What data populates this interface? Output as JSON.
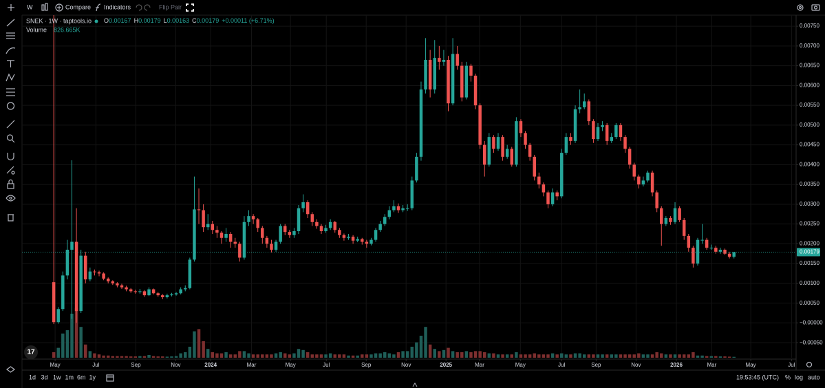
{
  "chart_data": {
    "type": "candlestick",
    "symbol": "SNEK · 1W · taptools.io",
    "ohlc_labels": [
      "O",
      "H",
      "L",
      "C"
    ],
    "change": "+0.00011 (+6.71%)",
    "up_color": "#26a69a",
    "down_color": "#ef5350",
    "volume_up_color": "#1f5e58",
    "volume_down_color": "#7d2f2f",
    "grid": true,
    "xlim": [
      -7,
      163.7
    ],
    "ylim": [
      -0.00088,
      0.00778
    ],
    "yticks": [
      {
        "value": 0.0075,
        "label": "0.00750"
      },
      {
        "value": 0.007,
        "label": "0.00700"
      },
      {
        "value": 0.0065,
        "label": "0.00650"
      },
      {
        "value": 0.006,
        "label": "0.00600"
      },
      {
        "value": 0.0055,
        "label": "0.00550"
      },
      {
        "value": 0.005,
        "label": "0.00500"
      },
      {
        "value": 0.0045,
        "label": "0.00450"
      },
      {
        "value": 0.004,
        "label": "0.00400"
      },
      {
        "value": 0.0035,
        "label": "0.00350"
      },
      {
        "value": 0.003,
        "label": "0.00300"
      },
      {
        "value": 0.0025,
        "label": "0.00250"
      },
      {
        "value": 0.002,
        "label": "0.00200"
      },
      {
        "value": 0.0015,
        "label": "0.00150"
      },
      {
        "value": 0.001,
        "label": "0.00100"
      },
      {
        "value": 0.0005,
        "label": "0.00050"
      },
      {
        "value": 0,
        "label": "−0.00000"
      },
      {
        "value": -0.0005,
        "label": "−0.00050"
      }
    ],
    "xticks": [
      {
        "value": 0.3,
        "label": "May"
      },
      {
        "value": 9.3,
        "label": "Jul"
      },
      {
        "value": 18.1,
        "label": "Sep"
      },
      {
        "value": 26.9,
        "label": "Nov"
      },
      {
        "value": 34.6,
        "label": "2024"
      },
      {
        "value": 43.6,
        "label": "Mar"
      },
      {
        "value": 52.2,
        "label": "May"
      },
      {
        "value": 60.1,
        "label": "Jul"
      },
      {
        "value": 68.9,
        "label": "Sep"
      },
      {
        "value": 77.7,
        "label": "Nov"
      },
      {
        "value": 86.5,
        "label": "2025"
      },
      {
        "value": 93.9,
        "label": "Mar"
      },
      {
        "value": 102.9,
        "label": "May"
      },
      {
        "value": 112,
        "label": "Jul"
      },
      {
        "value": 119.6,
        "label": "Sep"
      },
      {
        "value": 128.4,
        "label": "Nov"
      },
      {
        "value": 137.3,
        "label": "2026"
      },
      {
        "value": 145.1,
        "label": "Mar"
      },
      {
        "value": 153.7,
        "label": "May"
      },
      {
        "value": 162.7,
        "label": "Jul"
      }
    ],
    "ohlc": [
      [
        0.00103,
        0.0078,
        -3e-05,
        2e-05
      ],
      [
        2e-05,
        0.0004,
        -2e-05,
        0.00035
      ],
      [
        0.00035,
        0.0013,
        0.0003,
        0.0012
      ],
      [
        0.0012,
        0.0021,
        0.0011,
        0.00185
      ],
      [
        0.00185,
        0.00411,
        0.0001,
        0.00205
      ],
      [
        0.00205,
        0.0029,
        0,
        0.0003
      ],
      [
        0.0003,
        0.00185,
        0.00025,
        0.0017
      ],
      [
        0.0017,
        0.0018,
        0.001,
        0.0011
      ],
      [
        0.0011,
        0.0014,
        0.00105,
        0.0013
      ],
      [
        0.0013,
        0.00135,
        0.0012,
        0.00128
      ],
      [
        0.00128,
        0.00132,
        0.00118,
        0.00125
      ],
      [
        0.00125,
        0.00128,
        0.00108,
        0.00112
      ],
      [
        0.00112,
        0.00115,
        0.001,
        0.00105
      ],
      [
        0.00105,
        0.00108,
        0.00096,
        0.001
      ],
      [
        0.001,
        0.00103,
        0.0009,
        0.00095
      ],
      [
        0.00095,
        0.00099,
        0.00086,
        0.0009
      ],
      [
        0.0009,
        0.00094,
        0.0008,
        0.00085
      ],
      [
        0.00085,
        0.00088,
        0.00076,
        0.0008
      ],
      [
        0.0008,
        0.00084,
        0.00074,
        0.00078
      ],
      [
        0.00078,
        0.00086,
        0.00074,
        0.0008
      ],
      [
        0.0008,
        0.00083,
        0.00066,
        0.0007
      ],
      [
        0.0007,
        0.0009,
        0.00068,
        0.00085
      ],
      [
        0.00085,
        0.00087,
        0.00072,
        0.00075
      ],
      [
        0.00075,
        0.00078,
        0.00066,
        0.0007
      ],
      [
        0.0007,
        0.00073,
        0.0006,
        0.00065
      ],
      [
        0.00065,
        0.00074,
        0.00062,
        0.0007
      ],
      [
        0.0007,
        0.00076,
        0.00067,
        0.00072
      ],
      [
        0.00072,
        0.00078,
        0.00069,
        0.00075
      ],
      [
        0.00075,
        0.0009,
        0.00072,
        0.00085
      ],
      [
        0.00085,
        0.00095,
        0.0008,
        0.00088
      ],
      [
        0.00088,
        0.00165,
        0.00085,
        0.0016
      ],
      [
        0.0016,
        0.0037,
        0.00155,
        0.00287
      ],
      [
        0.00287,
        0.0034,
        0.0025,
        0.00285
      ],
      [
        0.00285,
        0.003,
        0.0023,
        0.00242
      ],
      [
        0.00242,
        0.00275,
        0.00235,
        0.0025
      ],
      [
        0.0025,
        0.00258,
        0.00225,
        0.00235
      ],
      [
        0.00235,
        0.00245,
        0.00215,
        0.00228
      ],
      [
        0.00228,
        0.00232,
        0.002,
        0.00215
      ],
      [
        0.00215,
        0.0024,
        0.00205,
        0.00225
      ],
      [
        0.00225,
        0.0023,
        0.0019,
        0.00205
      ],
      [
        0.00205,
        0.00215,
        0.0019,
        0.002
      ],
      [
        0.002,
        0.00205,
        0.00155,
        0.00165
      ],
      [
        0.00165,
        0.0027,
        0.0016,
        0.00255
      ],
      [
        0.00255,
        0.00285,
        0.00245,
        0.0027
      ],
      [
        0.0027,
        0.00275,
        0.0025,
        0.00262
      ],
      [
        0.00262,
        0.00265,
        0.0023,
        0.0024
      ],
      [
        0.0024,
        0.00245,
        0.002,
        0.00215
      ],
      [
        0.00215,
        0.0022,
        0.0019,
        0.002
      ],
      [
        0.002,
        0.0021,
        0.00178,
        0.00185
      ],
      [
        0.00185,
        0.0021,
        0.0018,
        0.00205
      ],
      [
        0.00205,
        0.0025,
        0.002,
        0.00245
      ],
      [
        0.00245,
        0.0025,
        0.00222,
        0.0023
      ],
      [
        0.0023,
        0.00235,
        0.00215,
        0.00222
      ],
      [
        0.00222,
        0.0024,
        0.00215,
        0.00232
      ],
      [
        0.00232,
        0.00298,
        0.00225,
        0.0029
      ],
      [
        0.0029,
        0.00325,
        0.0028,
        0.00305
      ],
      [
        0.00305,
        0.0031,
        0.00265,
        0.00275
      ],
      [
        0.00275,
        0.0028,
        0.00245,
        0.00255
      ],
      [
        0.00255,
        0.00262,
        0.00238,
        0.00245
      ],
      [
        0.00245,
        0.0025,
        0.00225,
        0.00232
      ],
      [
        0.00232,
        0.00248,
        0.00228,
        0.0024
      ],
      [
        0.0024,
        0.00262,
        0.00235,
        0.00255
      ],
      [
        0.00255,
        0.00258,
        0.00228,
        0.00235
      ],
      [
        0.00235,
        0.0024,
        0.00215,
        0.00222
      ],
      [
        0.00222,
        0.00226,
        0.00208,
        0.00215
      ],
      [
        0.00215,
        0.00225,
        0.0021,
        0.00218
      ],
      [
        0.00218,
        0.00222,
        0.002,
        0.00208
      ],
      [
        0.00208,
        0.00218,
        0.00204,
        0.00212
      ],
      [
        0.00212,
        0.00215,
        0.00198,
        0.00205
      ],
      [
        0.00205,
        0.0021,
        0.0019,
        0.002
      ],
      [
        0.002,
        0.00215,
        0.00196,
        0.0021
      ],
      [
        0.0021,
        0.0024,
        0.00205,
        0.00235
      ],
      [
        0.00235,
        0.00258,
        0.0023,
        0.0025
      ],
      [
        0.0025,
        0.00275,
        0.00245,
        0.00268
      ],
      [
        0.00268,
        0.00295,
        0.00262,
        0.00285
      ],
      [
        0.00285,
        0.0031,
        0.0028,
        0.00295
      ],
      [
        0.00295,
        0.00302,
        0.00278,
        0.00285
      ],
      [
        0.00285,
        0.00298,
        0.0028,
        0.0029
      ],
      [
        0.0029,
        0.003,
        0.00283,
        0.0029
      ],
      [
        0.0029,
        0.0037,
        0.00285,
        0.0036
      ],
      [
        0.0036,
        0.0043,
        0.00355,
        0.0042
      ],
      [
        0.0042,
        0.0061,
        0.0041,
        0.0059
      ],
      [
        0.0059,
        0.0072,
        0.0058,
        0.00665
      ],
      [
        0.00665,
        0.0069,
        0.0057,
        0.0059
      ],
      [
        0.0059,
        0.00715,
        0.0058,
        0.0067
      ],
      [
        0.0067,
        0.007,
        0.0064,
        0.0066
      ],
      [
        0.0066,
        0.0069,
        0.0065,
        0.00665
      ],
      [
        0.00665,
        0.00675,
        0.00535,
        0.00555
      ],
      [
        0.00555,
        0.0072,
        0.0055,
        0.0068
      ],
      [
        0.0068,
        0.007,
        0.0064,
        0.0065
      ],
      [
        0.0065,
        0.0066,
        0.0056,
        0.0057
      ],
      [
        0.0057,
        0.0066,
        0.00565,
        0.0065
      ],
      [
        0.0065,
        0.00655,
        0.0061,
        0.00625
      ],
      [
        0.00625,
        0.0063,
        0.0054,
        0.0055
      ],
      [
        0.0055,
        0.00555,
        0.0044,
        0.0045
      ],
      [
        0.0045,
        0.0046,
        0.0037,
        0.004
      ],
      [
        0.004,
        0.0048,
        0.00395,
        0.0047
      ],
      [
        0.0047,
        0.00475,
        0.0043,
        0.0044
      ],
      [
        0.0044,
        0.0048,
        0.00435,
        0.0047
      ],
      [
        0.0047,
        0.00475,
        0.0041,
        0.0042
      ],
      [
        0.0042,
        0.0045,
        0.00415,
        0.0044
      ],
      [
        0.0044,
        0.00445,
        0.00395,
        0.004
      ],
      [
        0.004,
        0.0052,
        0.00395,
        0.0051
      ],
      [
        0.0051,
        0.00515,
        0.0047,
        0.0048
      ],
      [
        0.0048,
        0.00485,
        0.0044,
        0.0045
      ],
      [
        0.0045,
        0.00455,
        0.0041,
        0.0042
      ],
      [
        0.0042,
        0.00425,
        0.0036,
        0.0037
      ],
      [
        0.0037,
        0.0038,
        0.0034,
        0.0035
      ],
      [
        0.0035,
        0.00355,
        0.0032,
        0.0033
      ],
      [
        0.0033,
        0.00335,
        0.0029,
        0.003
      ],
      [
        0.003,
        0.0034,
        0.00295,
        0.0033
      ],
      [
        0.0033,
        0.00335,
        0.0031,
        0.0032
      ],
      [
        0.0032,
        0.0044,
        0.00315,
        0.0043
      ],
      [
        0.0043,
        0.0048,
        0.00425,
        0.0047
      ],
      [
        0.0047,
        0.0048,
        0.0045,
        0.0046
      ],
      [
        0.0046,
        0.0055,
        0.00455,
        0.0054
      ],
      [
        0.0054,
        0.0059,
        0.0053,
        0.00545
      ],
      [
        0.00545,
        0.0058,
        0.0054,
        0.0056
      ],
      [
        0.0056,
        0.00565,
        0.005,
        0.0051
      ],
      [
        0.0051,
        0.00515,
        0.00455,
        0.00465
      ],
      [
        0.00465,
        0.00505,
        0.0046,
        0.00495
      ],
      [
        0.00495,
        0.0051,
        0.00485,
        0.005
      ],
      [
        0.005,
        0.00505,
        0.0045,
        0.0046
      ],
      [
        0.0046,
        0.0048,
        0.00455,
        0.0047
      ],
      [
        0.0047,
        0.00505,
        0.00465,
        0.005
      ],
      [
        0.005,
        0.00505,
        0.0046,
        0.0047
      ],
      [
        0.0047,
        0.00475,
        0.0043,
        0.0044
      ],
      [
        0.0044,
        0.00445,
        0.0039,
        0.004
      ],
      [
        0.004,
        0.00405,
        0.0036,
        0.0037
      ],
      [
        0.0037,
        0.00375,
        0.0034,
        0.0035
      ],
      [
        0.0035,
        0.0037,
        0.00345,
        0.0036
      ],
      [
        0.0036,
        0.00385,
        0.00355,
        0.0038
      ],
      [
        0.0038,
        0.00385,
        0.0032,
        0.0033
      ],
      [
        0.0033,
        0.00335,
        0.0028,
        0.0029
      ],
      [
        0.0029,
        0.00295,
        0.00195,
        0.0025
      ],
      [
        0.0025,
        0.0027,
        0.00245,
        0.00265
      ],
      [
        0.00265,
        0.0027,
        0.00248,
        0.00255
      ],
      [
        0.00255,
        0.00305,
        0.0025,
        0.0029
      ],
      [
        0.0029,
        0.00295,
        0.00255,
        0.0026
      ],
      [
        0.0026,
        0.00265,
        0.0021,
        0.0022
      ],
      [
        0.0022,
        0.00225,
        0.0018,
        0.0019
      ],
      [
        0.0019,
        0.00195,
        0.0014,
        0.0015
      ],
      [
        0.0015,
        0.00215,
        0.00145,
        0.0021
      ],
      [
        0.0021,
        0.0025,
        0.002,
        0.0021
      ],
      [
        0.0021,
        0.00215,
        0.00185,
        0.0019
      ],
      [
        0.0019,
        0.00198,
        0.00185,
        0.0019
      ],
      [
        0.0019,
        0.00195,
        0.00175,
        0.0018
      ],
      [
        0.0018,
        0.0019,
        0.00175,
        0.00185
      ],
      [
        0.00185,
        0.00188,
        0.00172,
        0.00175
      ],
      [
        0.00175,
        0.0018,
        0.00163,
        0.00167
      ],
      [
        0.00167,
        0.00179,
        0.00163,
        0.00179
      ]
    ],
    "volume": {
      "name": "Volume",
      "last_label": "826.665K",
      "ylim": [
        0,
        50000000
      ],
      "values": [
        5000000,
        9000000,
        22000000,
        25000000,
        40000000,
        45000000,
        28000000,
        12000000,
        6000000,
        4000000,
        3000000,
        2000000,
        2000000,
        1500000,
        1500000,
        1500000,
        1500000,
        1200000,
        1200000,
        1500000,
        1500000,
        2500000,
        1500000,
        1200000,
        1200000,
        1000000,
        1200000,
        1500000,
        4000000,
        5000000,
        10000000,
        24000000,
        26000000,
        15000000,
        8000000,
        5000000,
        4000000,
        4000000,
        5000000,
        3000000,
        3000000,
        6000000,
        6000000,
        4000000,
        3000000,
        3000000,
        3000000,
        3000000,
        3000000,
        4000000,
        5000000,
        4000000,
        3000000,
        4000000,
        8000000,
        7000000,
        5000000,
        3000000,
        3000000,
        3000000,
        3000000,
        4000000,
        3000000,
        3000000,
        3000000,
        2000000,
        2000000,
        2000000,
        3000000,
        3000000,
        3000000,
        4000000,
        4000000,
        5000000,
        4000000,
        3000000,
        5000000,
        6000000,
        6000000,
        10000000,
        14000000,
        20000000,
        28000000,
        12000000,
        8000000,
        6000000,
        7000000,
        9000000,
        6000000,
        5000000,
        5000000,
        6000000,
        5000000,
        6000000,
        6000000,
        5000000,
        4000000,
        4000000,
        3000000,
        3000000,
        3000000,
        3000000,
        5000000,
        3000000,
        3000000,
        3000000,
        4000000,
        3000000,
        3000000,
        3000000,
        4000000,
        3000000,
        4000000,
        3000000,
        3000000,
        4000000,
        4000000,
        3000000,
        3000000,
        3000000,
        3000000,
        3000000,
        3000000,
        3000000,
        3000000,
        3000000,
        3000000,
        3000000,
        3000000,
        4000000,
        3000000,
        3000000,
        3000000,
        5000000,
        4000000,
        3000000,
        3000000,
        3000000,
        3000000,
        3000000,
        3000000,
        5000000,
        2000000,
        2000000,
        1500000,
        1500000,
        1500000,
        1200000,
        1200000,
        1000000,
        826665
      ]
    }
  },
  "ui": {
    "interval": "W",
    "compare": "Compare",
    "indicators": "Indicators",
    "flip_pair": "Flip Pair",
    "ranges": [
      "1d",
      "3d",
      "1w",
      "1m",
      "6m",
      "1y"
    ],
    "clock": "19:53:45 (UTC)",
    "percent": "%",
    "log": "log",
    "auto": "auto"
  }
}
